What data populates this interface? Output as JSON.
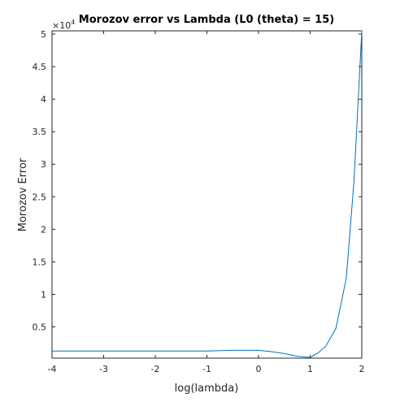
{
  "chart_data": {
    "type": "line",
    "title": "Morozov error vs Lambda (L0 (theta) = 15)",
    "xlabel": "log(lambda)",
    "ylabel": "Morozov Error",
    "xlim": [
      -4,
      2
    ],
    "ylim": [
      200,
      50500
    ],
    "y_exponent_label": "×10",
    "y_exponent_power": "4",
    "x_ticks": [
      -4,
      -3,
      -2,
      -1,
      0,
      1,
      2
    ],
    "x_tick_labels": [
      "-4",
      "-3",
      "-2",
      "-1",
      "0",
      "1",
      "2"
    ],
    "y_ticks": [
      5000,
      10000,
      15000,
      20000,
      25000,
      30000,
      35000,
      40000,
      45000,
      50000
    ],
    "y_tick_labels": [
      "0.5",
      "1",
      "1.5",
      "2",
      "2.5",
      "3",
      "3.5",
      "4",
      "4.5",
      "5"
    ],
    "grid": false,
    "series": [
      {
        "color": "#0072bd",
        "x": [
          -4,
          -3.5,
          -3,
          -2.5,
          -2,
          -1.5,
          -1,
          -0.5,
          0,
          0.25,
          0.5,
          0.75,
          1,
          1.15,
          1.3,
          1.5,
          1.7,
          1.85,
          2
        ],
        "y": [
          1300,
          1300,
          1300,
          1300,
          1300,
          1300,
          1300,
          1400,
          1400,
          1200,
          900,
          500,
          300,
          1000,
          2000,
          4800,
          12500,
          27500,
          50500
        ]
      }
    ]
  }
}
